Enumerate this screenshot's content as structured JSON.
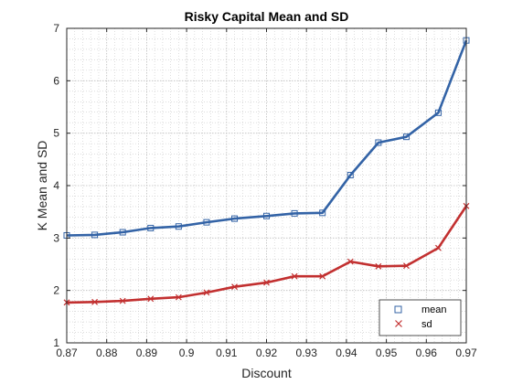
{
  "chart_data": {
    "type": "line",
    "title": "Risky Capital Mean and SD",
    "xlabel": "Discount",
    "ylabel": "K Mean and SD",
    "xlim": [
      0.87,
      0.97
    ],
    "ylim": [
      1,
      7
    ],
    "xticks": [
      "0.87",
      "0.88",
      "0.89",
      "0.9",
      "0.91",
      "0.92",
      "0.93",
      "0.94",
      "0.95",
      "0.96",
      "0.97"
    ],
    "yticks": [
      "1",
      "2",
      "3",
      "4",
      "5",
      "6",
      "7"
    ],
    "grid": true,
    "minor_grid": true,
    "legend_position": "bottom-right",
    "x": [
      0.87,
      0.877,
      0.884,
      0.891,
      0.898,
      0.905,
      0.912,
      0.92,
      0.927,
      0.934,
      0.941,
      0.948,
      0.955,
      0.963,
      0.97
    ],
    "series": [
      {
        "name": "mean",
        "color": "#3363a6",
        "marker": "square",
        "values": [
          3.05,
          3.06,
          3.11,
          3.19,
          3.22,
          3.3,
          3.37,
          3.42,
          3.47,
          3.48,
          4.2,
          4.82,
          4.93,
          5.39,
          6.77
        ]
      },
      {
        "name": "sd",
        "color": "#c23030",
        "marker": "x",
        "values": [
          1.77,
          1.78,
          1.8,
          1.84,
          1.87,
          1.96,
          2.07,
          2.15,
          2.27,
          2.27,
          2.55,
          2.46,
          2.47,
          2.81,
          3.61
        ]
      }
    ]
  }
}
